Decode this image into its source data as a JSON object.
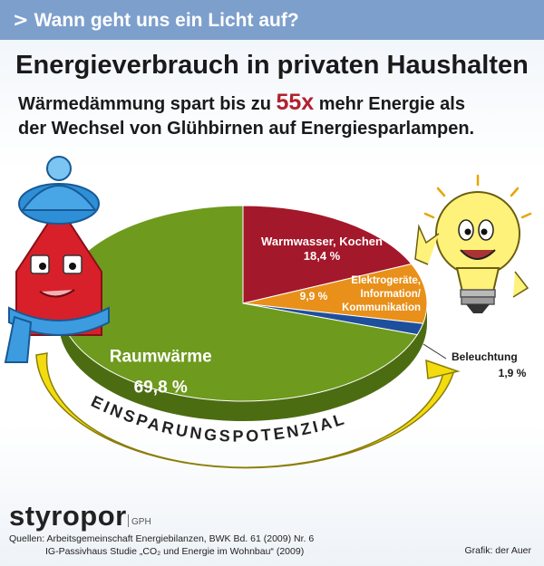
{
  "header": {
    "chevron": ">",
    "text": "Wann geht uns ein Licht auf?"
  },
  "title": "Energieverbrauch in privaten Haushalten",
  "subtitle": {
    "line1_pre": "Wärmedämmung spart bis zu ",
    "highlight": "55x",
    "line1_post": " mehr Energie als",
    "line2": "der Wechsel von Glühbirnen auf Energiesparlampen."
  },
  "chart_data": {
    "type": "pie",
    "title": "Energieverbrauch in privaten Haushalten",
    "slices": [
      {
        "label": "Raumwärme",
        "value": 69.8,
        "display": "69,8 %",
        "color": "#6e9a1e"
      },
      {
        "label": "Warmwasser, Kochen",
        "value": 18.4,
        "display": "18,4 %",
        "color": "#a3182a"
      },
      {
        "label": "Elektrogeräte, Information/ Kommunikation",
        "label_lines": [
          "Elektrogeräte,",
          "Information/",
          "Kommunikation"
        ],
        "value": 9.9,
        "display": "9,9 %",
        "color": "#e8901a"
      },
      {
        "label": "Beleuchtung",
        "value": 1.9,
        "display": "1,9 %",
        "color": "#1e4f9c"
      }
    ],
    "ring_label": "EINSPARUNGSPOTENZIAL",
    "ring_color": "#f2dc10"
  },
  "logo": {
    "name": "styropor",
    "suffix": "GPH"
  },
  "sources": {
    "line1": "Quellen: Arbeitsgemeinschaft Energiebilanzen, BWK Bd. 61 (2009) Nr. 6",
    "line2": "IG-Passivhaus Studie „CO₂ und Energie im Wohnbau“ (2009)"
  },
  "credit": "Grafik: der Auer"
}
